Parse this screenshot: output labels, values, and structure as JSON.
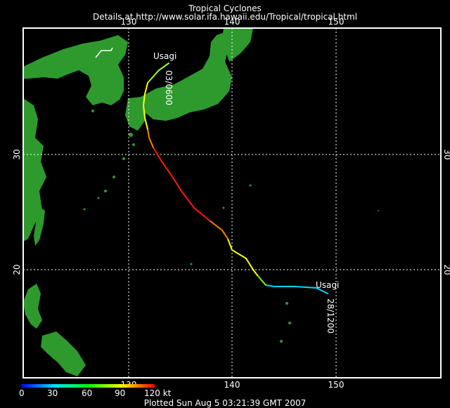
{
  "header": {
    "title": "Tropical Cyclones",
    "subtitle": "Details at http://www.solar.ifa.hawaii.edu/Tropical/tropical.html"
  },
  "map": {
    "longitude_ticks_top": [
      "130",
      "140",
      "150"
    ],
    "longitude_ticks_bottom": [
      "130",
      "140",
      "150"
    ],
    "latitude_ticks_left": [
      "30",
      "20"
    ],
    "latitude_ticks_right": [
      "30",
      "20"
    ],
    "colors": {
      "land": "#2e9a2e",
      "ocean": "#000000",
      "grid": "#ffffff"
    }
  },
  "storm": {
    "name": "Usagi",
    "start_label": "28/1200",
    "end_label": "03/0600",
    "track_colors": [
      "#00d8ff",
      "#ffff00",
      "#ff8000",
      "#ff0000"
    ]
  },
  "legend": {
    "labels": [
      "0",
      "30",
      "60",
      "90",
      "120 kt"
    ],
    "colors": [
      "#0000ff",
      "#00e0ff",
      "#00ff00",
      "#ffff00",
      "#ff0000"
    ]
  },
  "footer": {
    "text": "Plotted Sun Aug 5 03:21:39 GMT 2007"
  }
}
